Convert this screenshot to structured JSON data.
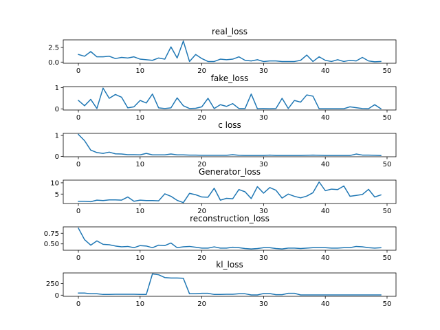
{
  "chart_data": [
    {
      "type": "line",
      "title": "real_loss",
      "x": [
        0,
        1,
        2,
        3,
        4,
        5,
        6,
        7,
        8,
        9,
        10,
        11,
        12,
        13,
        14,
        15,
        16,
        17,
        18,
        19,
        20,
        21,
        22,
        23,
        24,
        25,
        26,
        27,
        28,
        29,
        30,
        31,
        32,
        33,
        34,
        35,
        36,
        37,
        38,
        39,
        40,
        41,
        42,
        43,
        44,
        45,
        46,
        47,
        48,
        49
      ],
      "values": [
        1.3,
        1.0,
        1.8,
        0.9,
        0.9,
        1.0,
        0.6,
        0.8,
        0.7,
        0.9,
        0.5,
        0.4,
        0.3,
        0.7,
        0.5,
        2.6,
        0.7,
        3.6,
        0.1,
        1.3,
        0.6,
        0.1,
        0.1,
        0.5,
        0.4,
        0.5,
        0.9,
        0.3,
        0.2,
        0.4,
        0.1,
        0.2,
        0.2,
        0.1,
        0.1,
        0.1,
        0.3,
        1.2,
        0.1,
        0.9,
        0.3,
        0.1,
        0.4,
        0.1,
        0.3,
        0.2,
        0.8,
        0.2,
        0.05,
        0.1
      ],
      "ylim": [
        -0.2,
        3.8
      ],
      "xlim": [
        -2.45,
        51.45
      ],
      "xticks": [
        "0",
        "10",
        "20",
        "30",
        "40",
        "50"
      ],
      "yticks": [
        0.0,
        2.5
      ],
      "ytick_labels": [
        "0.0",
        "2.5"
      ],
      "color": "#1f77b4"
    },
    {
      "type": "line",
      "title": "fake_loss",
      "x": [
        0,
        1,
        2,
        3,
        4,
        5,
        6,
        7,
        8,
        9,
        10,
        11,
        12,
        13,
        14,
        15,
        16,
        17,
        18,
        19,
        20,
        21,
        22,
        23,
        24,
        25,
        26,
        27,
        28,
        29,
        30,
        31,
        32,
        33,
        34,
        35,
        36,
        37,
        38,
        39,
        40,
        41,
        42,
        43,
        44,
        45,
        46,
        47,
        48,
        49
      ],
      "values": [
        0.4,
        0.15,
        0.45,
        0.02,
        0.98,
        0.5,
        0.68,
        0.55,
        0.05,
        0.1,
        0.4,
        0.28,
        0.7,
        0.05,
        0.02,
        0.05,
        0.52,
        0.15,
        0.02,
        0.03,
        0.1,
        0.5,
        0.02,
        0.2,
        0.12,
        0.25,
        0.02,
        0.02,
        0.7,
        0.01,
        0.02,
        0.01,
        0.02,
        0.5,
        0.02,
        0.4,
        0.32,
        0.66,
        0.6,
        0.01,
        0.01,
        0.01,
        0.01,
        0.01,
        0.1,
        0.06,
        0.02,
        0.01,
        0.2,
        0.01
      ],
      "ylim": [
        -0.05,
        1.05
      ],
      "xlim": [
        -2.45,
        51.45
      ],
      "xticks": [
        "0",
        "10",
        "20",
        "30",
        "40",
        "50"
      ],
      "yticks": [
        0,
        1
      ],
      "ytick_labels": [
        "0",
        "1"
      ],
      "color": "#1f77b4"
    },
    {
      "type": "line",
      "title": "c loss",
      "x": [
        0,
        1,
        2,
        3,
        4,
        5,
        6,
        7,
        8,
        9,
        10,
        11,
        12,
        13,
        14,
        15,
        16,
        17,
        18,
        19,
        20,
        21,
        22,
        23,
        24,
        25,
        26,
        27,
        28,
        29,
        30,
        31,
        32,
        33,
        34,
        35,
        36,
        37,
        38,
        39,
        40,
        41,
        42,
        43,
        44,
        45,
        46,
        47,
        48,
        49
      ],
      "values": [
        1.05,
        0.75,
        0.3,
        0.18,
        0.14,
        0.2,
        0.12,
        0.11,
        0.08,
        0.08,
        0.07,
        0.14,
        0.07,
        0.07,
        0.07,
        0.11,
        0.07,
        0.07,
        0.06,
        0.06,
        0.05,
        0.05,
        0.05,
        0.05,
        0.05,
        0.08,
        0.05,
        0.04,
        0.04,
        0.04,
        0.04,
        0.06,
        0.04,
        0.04,
        0.04,
        0.04,
        0.04,
        0.05,
        0.06,
        0.05,
        0.04,
        0.04,
        0.04,
        0.04,
        0.04,
        0.11,
        0.06,
        0.06,
        0.05,
        0.04
      ],
      "ylim": [
        -0.02,
        1.1
      ],
      "xlim": [
        -2.45,
        51.45
      ],
      "xticks": [
        "0",
        "10",
        "20",
        "30",
        "40",
        "50"
      ],
      "yticks": [
        0,
        1
      ],
      "ytick_labels": [
        "0",
        "1"
      ],
      "color": "#1f77b4"
    },
    {
      "type": "line",
      "title": "Generator_loss",
      "x": [
        0,
        1,
        2,
        3,
        4,
        5,
        6,
        7,
        8,
        9,
        10,
        11,
        12,
        13,
        14,
        15,
        16,
        17,
        18,
        19,
        20,
        21,
        22,
        23,
        24,
        25,
        26,
        27,
        28,
        29,
        30,
        31,
        32,
        33,
        34,
        35,
        36,
        37,
        38,
        39,
        40,
        41,
        42,
        43,
        44,
        45,
        46,
        47,
        48,
        49
      ],
      "values": [
        1.8,
        1.8,
        1.6,
        2.3,
        2.1,
        2.4,
        2.4,
        2.3,
        3.7,
        1.8,
        2.3,
        2.1,
        2.1,
        2.0,
        5.1,
        4.0,
        2.2,
        1.2,
        5.3,
        4.7,
        3.7,
        3.6,
        7.6,
        2.3,
        3.1,
        2.9,
        7.0,
        6.0,
        3.0,
        8.3,
        5.4,
        7.9,
        6.7,
        3.2,
        5.0,
        4.0,
        3.3,
        4.1,
        5.6,
        10.4,
        6.5,
        7.2,
        7.0,
        8.6,
        4.0,
        4.4,
        4.8,
        7.1,
        3.7,
        4.6
      ],
      "ylim": [
        0.8,
        11.2
      ],
      "xlim": [
        -2.45,
        51.45
      ],
      "xticks": [
        "0",
        "10",
        "20",
        "30",
        "40",
        "50"
      ],
      "yticks": [
        5,
        10
      ],
      "ytick_labels": [
        "5",
        "10"
      ],
      "color": "#1f77b4"
    },
    {
      "type": "line",
      "title": "reconstruction_loss",
      "x": [
        0,
        1,
        2,
        3,
        4,
        5,
        6,
        7,
        8,
        9,
        10,
        11,
        12,
        13,
        14,
        15,
        16,
        17,
        18,
        19,
        20,
        21,
        22,
        23,
        24,
        25,
        26,
        27,
        28,
        29,
        30,
        31,
        32,
        33,
        34,
        35,
        36,
        37,
        38,
        39,
        40,
        41,
        42,
        43,
        44,
        45,
        46,
        47,
        48,
        49
      ],
      "values": [
        0.87,
        0.6,
        0.47,
        0.57,
        0.49,
        0.48,
        0.45,
        0.43,
        0.44,
        0.41,
        0.46,
        0.45,
        0.41,
        0.47,
        0.46,
        0.52,
        0.41,
        0.43,
        0.44,
        0.42,
        0.4,
        0.4,
        0.43,
        0.4,
        0.4,
        0.42,
        0.41,
        0.39,
        0.38,
        0.39,
        0.41,
        0.41,
        0.39,
        0.38,
        0.4,
        0.4,
        0.39,
        0.4,
        0.41,
        0.41,
        0.41,
        0.4,
        0.4,
        0.41,
        0.41,
        0.44,
        0.43,
        0.41,
        0.4,
        0.41
      ],
      "ylim": [
        0.35,
        0.9
      ],
      "xlim": [
        -2.45,
        51.45
      ],
      "xticks": [
        "0",
        "10",
        "20",
        "30",
        "40",
        "50"
      ],
      "yticks": [
        0.5,
        0.75
      ],
      "ytick_labels": [
        "0.50",
        "0.75"
      ],
      "color": "#1f77b4"
    },
    {
      "type": "line",
      "title": "kl_loss",
      "x": [
        0,
        1,
        2,
        3,
        4,
        5,
        6,
        7,
        8,
        9,
        10,
        11,
        12,
        13,
        14,
        15,
        16,
        17,
        18,
        19,
        20,
        21,
        22,
        23,
        24,
        25,
        26,
        27,
        28,
        29,
        30,
        31,
        32,
        33,
        34,
        35,
        36,
        37,
        38,
        39,
        40,
        41,
        42,
        43,
        44,
        45,
        46,
        47,
        48,
        49
      ],
      "values": [
        45,
        45,
        30,
        30,
        15,
        15,
        20,
        20,
        20,
        20,
        15,
        15,
        460,
        440,
        380,
        370,
        370,
        365,
        30,
        30,
        40,
        40,
        15,
        15,
        20,
        20,
        30,
        30,
        5,
        5,
        35,
        35,
        10,
        10,
        40,
        40,
        5,
        5,
        5,
        5,
        5,
        5,
        5,
        5,
        5,
        5,
        5,
        5,
        5,
        5
      ],
      "ylim": [
        -25,
        480
      ],
      "xlim": [
        -2.45,
        51.45
      ],
      "xticks": [
        "0",
        "10",
        "20",
        "30",
        "40",
        "50"
      ],
      "yticks": [
        0,
        250
      ],
      "ytick_labels": [
        "0",
        "250"
      ],
      "color": "#1f77b4"
    }
  ]
}
